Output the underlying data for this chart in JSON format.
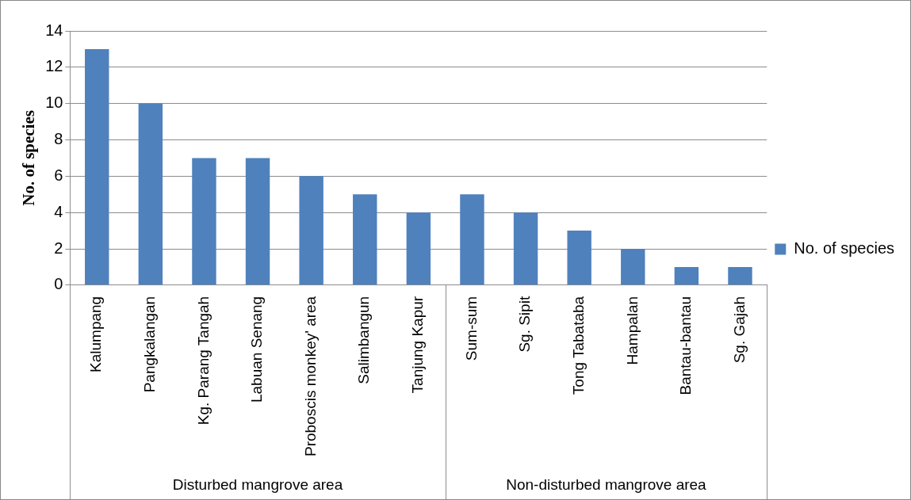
{
  "chart_data": {
    "type": "bar",
    "ylabel": "No. of species",
    "categories": [
      "Kalumpang",
      "Pangkalangan",
      "Kg. Parang Tangah",
      "Labuan Senang",
      "Proboscis monkey' area",
      "Salimbangun",
      "Tanjung Kapur",
      "Sum-sum",
      "Sg. Sipit",
      "Tong Tabataba",
      "Hampalan",
      "Bantau-bantau",
      "Sg. Gajah"
    ],
    "series": [
      {
        "name": "No. of species",
        "color": "#4f81bd",
        "values": [
          13,
          10,
          7,
          7,
          6,
          5,
          4,
          5,
          4,
          3,
          2,
          1,
          1
        ]
      }
    ],
    "ylim": [
      0,
      14
    ],
    "yticks": [
      0,
      2,
      4,
      6,
      8,
      10,
      12,
      14
    ],
    "grid": "y",
    "legend": "right",
    "annotations": [
      "Disturbed mangrove area",
      "Non-disturbed mangrove area"
    ]
  }
}
